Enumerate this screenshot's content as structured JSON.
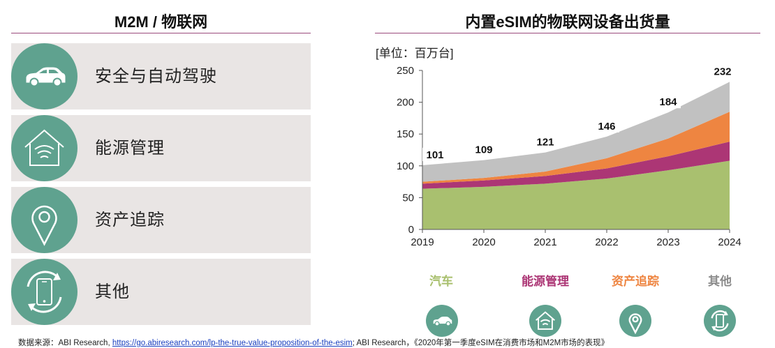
{
  "left_panel": {
    "title": "M2M / 物联网",
    "items": [
      {
        "label": "安全与自动驾驶",
        "icon": "car-icon"
      },
      {
        "label": "能源管理",
        "icon": "smart-home-icon"
      },
      {
        "label": "资产追踪",
        "icon": "location-pin-icon"
      },
      {
        "label": "其他",
        "icon": "smartphone-sync-icon"
      }
    ]
  },
  "right_panel": {
    "title": "内置eSIM的物联网设备出货量",
    "unit": "[单位：百万台]"
  },
  "chart_data": {
    "type": "area",
    "stacked": true,
    "x": [
      "2019",
      "2020",
      "2021",
      "2022",
      "2023",
      "2024"
    ],
    "ylim": [
      0,
      250
    ],
    "yticks": [
      0,
      50,
      100,
      150,
      200,
      250
    ],
    "grid": false,
    "series": [
      {
        "name": "汽车",
        "color": "#a9c06f",
        "values": [
          64,
          67,
          72,
          80,
          93,
          108
        ]
      },
      {
        "name": "能源管理",
        "color": "#ac3675",
        "values": [
          8,
          10,
          12,
          16,
          22,
          30
        ]
      },
      {
        "name": "资产追踪",
        "color": "#ee8541",
        "values": [
          3,
          4,
          7,
          16,
          28,
          47
        ]
      },
      {
        "name": "其他",
        "color": "#c1c1c1",
        "values": [
          26,
          28,
          30,
          34,
          41,
          47
        ]
      }
    ],
    "totals": [
      101,
      109,
      121,
      146,
      184,
      232
    ],
    "legend_position": "bottom"
  },
  "legend_icons": [
    "car-icon",
    "smart-home-icon",
    "location-pin-icon",
    "smartphone-sync-icon"
  ],
  "source": {
    "prefix": "数据来源：ABI Research, ",
    "link_text": "https://go.abiresearch.com/lp-the-true-value-proposition-of-the-esim",
    "suffix": "; ABI Research，《2020年第一季度eSIM在消费市场和M2M市场的表现》"
  },
  "colors": {
    "accent_teal": "#5fa28f",
    "card_bg": "#e9e5e4",
    "rule": "#9a4a7c"
  }
}
